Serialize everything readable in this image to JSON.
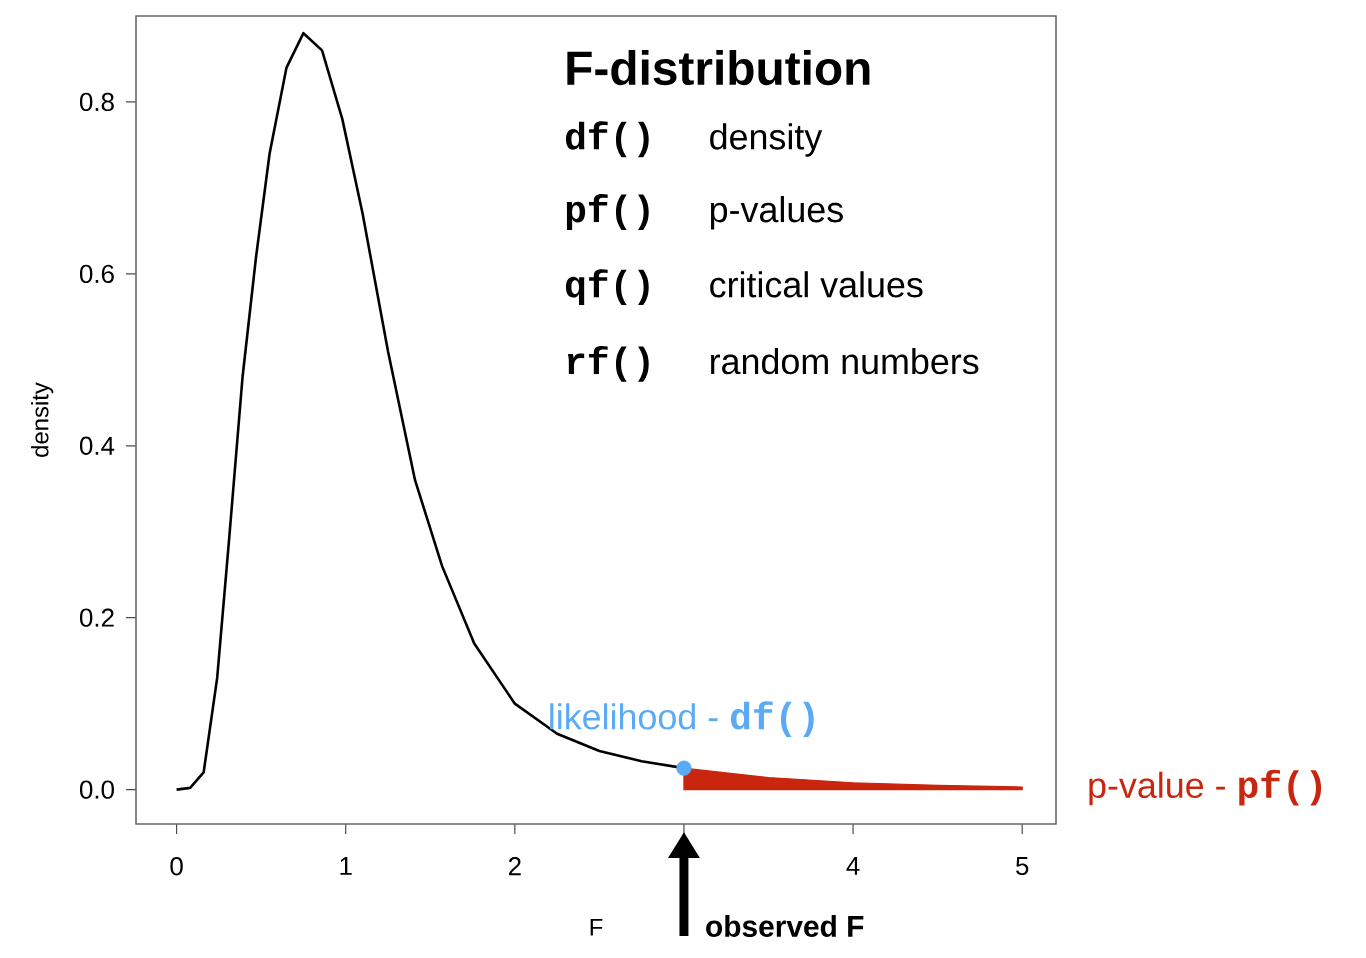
{
  "chart_data": {
    "type": "line",
    "xlabel": "F",
    "ylabel": "density",
    "xlim": [
      -0.24,
      5.2
    ],
    "ylim": [
      -0.04,
      0.9
    ],
    "xticks": [
      0,
      1,
      2,
      {
        "value": 3,
        "label": null
      },
      4,
      5
    ],
    "yticks": [
      {
        "value": 0,
        "label": "0.0"
      },
      {
        "value": 0.2,
        "label": "0.2"
      },
      {
        "value": 0.4,
        "label": "0.4"
      },
      {
        "value": 0.6,
        "label": "0.6"
      },
      {
        "value": 0.8,
        "label": "0.8"
      }
    ],
    "grid": false,
    "series": [
      {
        "color": "#000000",
        "x": [
          0,
          0.08,
          0.16,
          0.24,
          0.31,
          0.39,
          0.47,
          0.55,
          0.65,
          0.75,
          0.86,
          0.98,
          1.1,
          1.25,
          1.41,
          1.57,
          1.76,
          2.0,
          2.25,
          2.5,
          2.75,
          3.0
        ],
        "values": [
          0,
          0.002,
          0.02,
          0.13,
          0.29,
          0.48,
          0.62,
          0.74,
          0.84,
          0.88,
          0.86,
          0.78,
          0.67,
          0.51,
          0.36,
          0.26,
          0.17,
          0.1,
          0.065,
          0.045,
          0.033,
          0.025
        ]
      },
      {
        "type": "area",
        "color": "#c8260e",
        "x": [
          3,
          3.5,
          4,
          4.5,
          5
        ],
        "values": [
          0.025,
          0.014,
          0.008,
          0.005,
          0.003
        ]
      },
      {
        "type": "scatter",
        "color": "#5aaaf5",
        "marker": "circle",
        "x": [
          3
        ],
        "values": [
          0.025
        ]
      }
    ],
    "annotations": [
      "F-distribution",
      "df()",
      "density",
      "pf()",
      "p-values",
      "qf()",
      "critical values",
      "rf()",
      "random numbers",
      {
        "text": "likelihood -",
        "x": 3,
        "y": 0.025
      },
      "df()",
      "p-value -",
      "pf()",
      "observed F"
    ]
  }
}
